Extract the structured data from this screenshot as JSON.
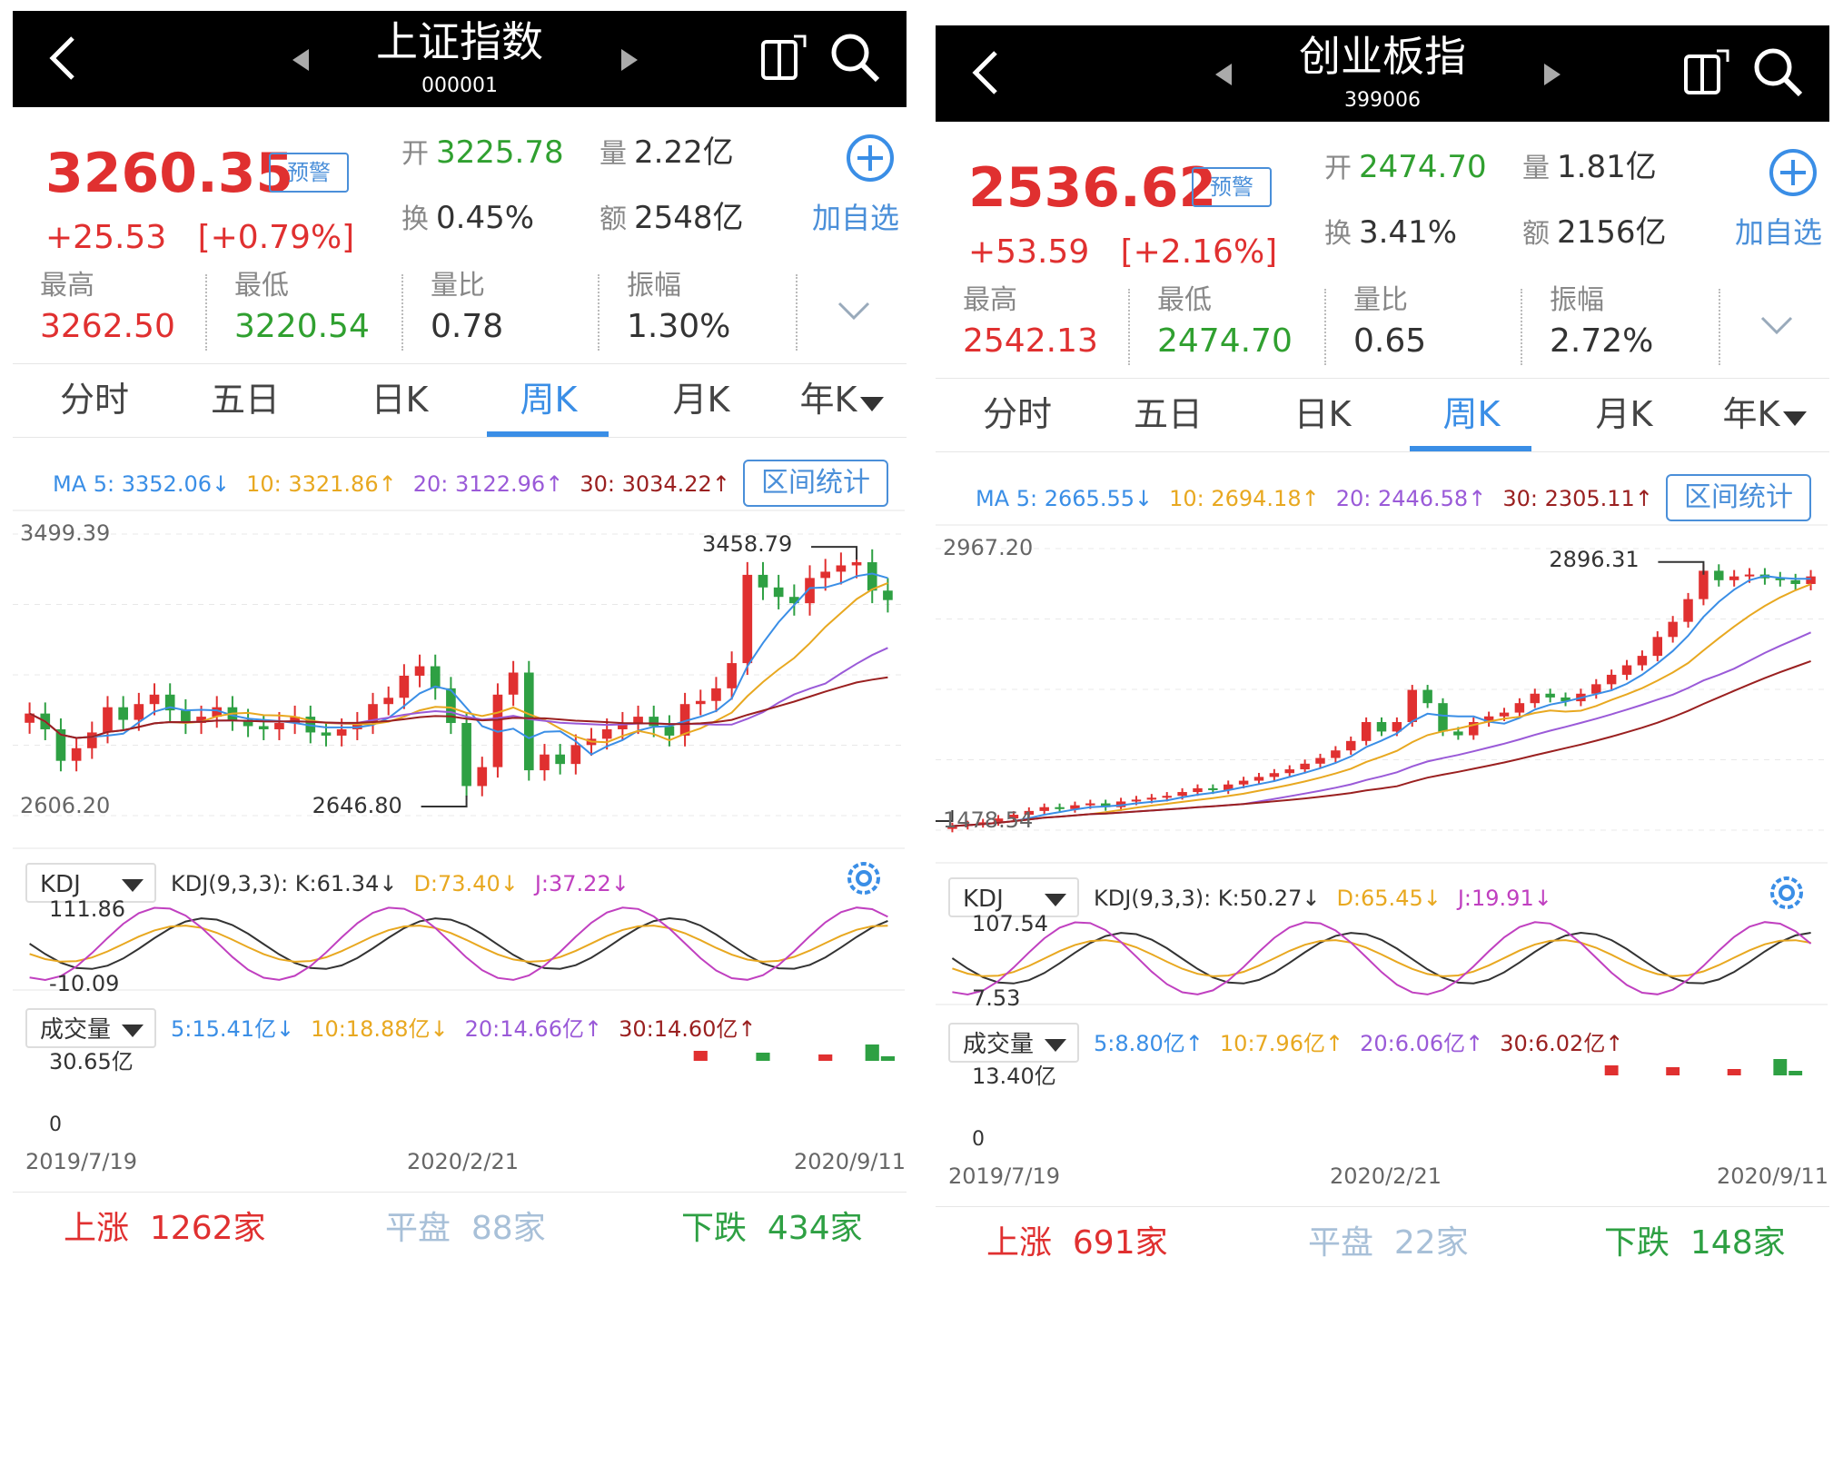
{
  "panels": [
    {
      "title": "上证指数",
      "code": "000001",
      "price": "3260.35",
      "alert_label": "预警",
      "change": "+25.53",
      "change_pct": "[+0.79%]",
      "open_label": "开",
      "open": "3225.78",
      "volume_label": "量",
      "volume": "2.22亿",
      "turnover_label": "换",
      "turnover": "0.45%",
      "amount_label": "额",
      "amount": "2548亿",
      "add_fav": "加自选",
      "stats": [
        {
          "label": "最高",
          "value": "3262.50",
          "color": "#e03030"
        },
        {
          "label": "最低",
          "value": "3220.54",
          "color": "#30a030"
        },
        {
          "label": "量比",
          "value": "0.78",
          "color": "#333333"
        },
        {
          "label": "振幅",
          "value": "1.30%",
          "color": "#333333"
        }
      ],
      "tabs": [
        "分时",
        "五日",
        "日K",
        "周K",
        "月K",
        "年K"
      ],
      "active_tab": "周K",
      "ma": {
        "ma5": "MA 5: 3352.06↓",
        "ma10": "10: 3321.86↑",
        "ma20": "20: 3122.96↑",
        "ma30": "30: 3034.22↑"
      },
      "range_button": "区间统计",
      "axis_top": "3499.39",
      "axis_bottom": "2606.20",
      "high_mark": "3458.79",
      "low_mark": "2646.80",
      "kdj_select": "KDJ",
      "kdj_params": "KDJ(9,3,3): K:61.34↓",
      "kdj_d": "D:73.40↓",
      "kdj_j": "J:37.22↓",
      "kdj_top": "111.86",
      "kdj_bottom": "-10.09",
      "vol_select": "成交量",
      "vol_5": "5:15.41亿↓",
      "vol_10": "10:18.88亿↓",
      "vol_20": "20:14.66亿↑",
      "vol_30": "30:14.60亿↑",
      "vol_top": "30.65亿",
      "vol_zero": "0",
      "dates": [
        "2019/7/19",
        "2020/2/21",
        "2020/9/11"
      ],
      "up": "上涨  1262家",
      "flat": "平盘  88家",
      "down": "下跌  434家",
      "chart_data": {
        "type": "candlestick",
        "unit": "index points",
        "ylim": [
          2606.2,
          3499.39
        ],
        "high": 3458.79,
        "low": 2646.8,
        "closes": [
          2930,
          2880,
          2780,
          2820,
          2870,
          2950,
          2910,
          2960,
          2990,
          2940,
          2900,
          2920,
          2950,
          2910,
          2890,
          2880,
          2900,
          2920,
          2870,
          2860,
          2880,
          2900,
          2960,
          2980,
          3050,
          3080,
          3010,
          2900,
          2700,
          2760,
          2990,
          3060,
          2750,
          2800,
          2770,
          2830,
          2850,
          2880,
          2900,
          2920,
          2890,
          2860,
          2960,
          2970,
          3010,
          3090,
          3370,
          3330,
          3300,
          3280,
          3360,
          3380,
          3400,
          3410,
          3320,
          3290
        ]
      }
    },
    {
      "title": "创业板指",
      "code": "399006",
      "price": "2536.62",
      "alert_label": "预警",
      "change": "+53.59",
      "change_pct": "[+2.16%]",
      "open_label": "开",
      "open": "2474.70",
      "volume_label": "量",
      "volume": "1.81亿",
      "turnover_label": "换",
      "turnover": "3.41%",
      "amount_label": "额",
      "amount": "2156亿",
      "add_fav": "加自选",
      "stats": [
        {
          "label": "最高",
          "value": "2542.13",
          "color": "#e03030"
        },
        {
          "label": "最低",
          "value": "2474.70",
          "color": "#30a030"
        },
        {
          "label": "量比",
          "value": "0.65",
          "color": "#333333"
        },
        {
          "label": "振幅",
          "value": "2.72%",
          "color": "#333333"
        }
      ],
      "tabs": [
        "分时",
        "五日",
        "日K",
        "周K",
        "月K",
        "年K"
      ],
      "active_tab": "周K",
      "ma": {
        "ma5": "MA 5: 2665.55↓",
        "ma10": "10: 2694.18↑",
        "ma20": "20: 2446.58↑",
        "ma30": "30: 2305.11↑"
      },
      "range_button": "区间统计",
      "axis_top": "2967.20",
      "axis_bottom": "1478.54",
      "high_mark": "2896.31",
      "low_mark": "1478.54",
      "kdj_select": "KDJ",
      "kdj_params": "KDJ(9,3,3): K:50.27↓",
      "kdj_d": "D:65.45↓",
      "kdj_j": "J:19.91↓",
      "kdj_top": "107.54",
      "kdj_bottom": "7.53",
      "vol_select": "成交量",
      "vol_5": "5:8.80亿↑",
      "vol_10": "10:7.96亿↑",
      "vol_20": "20:6.06亿↑",
      "vol_30": "30:6.02亿↑",
      "vol_top": "13.40亿",
      "vol_zero": "0",
      "dates": [
        "2019/7/19",
        "2020/2/21",
        "2020/9/11"
      ],
      "up": "上涨  691家",
      "flat": "平盘  22家",
      "down": "下跌  148家",
      "chart_data": {
        "type": "candlestick",
        "unit": "index points",
        "ylim": [
          1478.54,
          2967.2
        ],
        "high": 2896.31,
        "low": 1478.54,
        "closes": [
          1500,
          1510,
          1520,
          1540,
          1560,
          1580,
          1600,
          1590,
          1610,
          1620,
          1600,
          1630,
          1640,
          1650,
          1660,
          1680,
          1700,
          1690,
          1720,
          1740,
          1760,
          1780,
          1800,
          1830,
          1860,
          1900,
          1950,
          2050,
          2000,
          2050,
          2220,
          2150,
          2000,
          1980,
          2050,
          2080,
          2100,
          2150,
          2200,
          2180,
          2160,
          2200,
          2250,
          2300,
          2350,
          2400,
          2500,
          2580,
          2700,
          2850,
          2800,
          2820,
          2830,
          2810,
          2800,
          2780,
          2820
        ]
      }
    }
  ]
}
